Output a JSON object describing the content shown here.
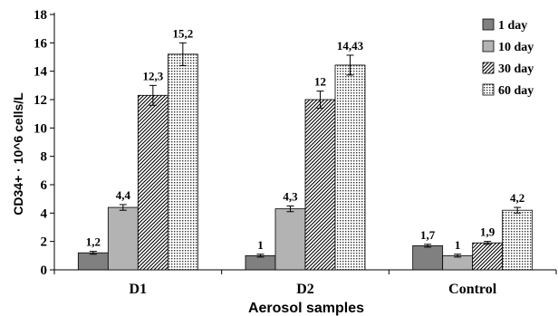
{
  "chart_data": {
    "type": "bar",
    "title": "",
    "xlabel": "Aerosol samples",
    "ylabel": "CD34+ · 10^6 cells/L",
    "categories": [
      "D1",
      "D2",
      "Control"
    ],
    "ylim": [
      0,
      18
    ],
    "yticks": [
      0,
      2,
      4,
      6,
      8,
      10,
      12,
      14,
      16,
      18
    ],
    "grid": false,
    "legend_position": "top-right",
    "series": [
      {
        "name": "1 day",
        "values": [
          1.2,
          1.0,
          1.7
        ],
        "errors": [
          0.1,
          0.1,
          0.1
        ],
        "labels": [
          "1,2",
          "1",
          "1,7"
        ],
        "fill": "#808080",
        "pattern": "solid"
      },
      {
        "name": "10 day",
        "values": [
          4.4,
          4.3,
          1.0
        ],
        "errors": [
          0.2,
          0.2,
          0.1
        ],
        "labels": [
          "4,4",
          "4,3",
          "1"
        ],
        "fill": "#b3b3b3",
        "pattern": "solid"
      },
      {
        "name": "30 day",
        "values": [
          12.3,
          12.0,
          1.9
        ],
        "errors": [
          0.7,
          0.6,
          0.1
        ],
        "labels": [
          "12,3",
          "12",
          "1,9"
        ],
        "fill": "#ffffff",
        "pattern": "diagonal"
      },
      {
        "name": "60 day",
        "values": [
          15.2,
          14.43,
          4.2
        ],
        "errors": [
          0.8,
          0.7,
          0.2
        ],
        "labels": [
          "15,2",
          "14,43",
          "4,2"
        ],
        "fill": "#ffffff",
        "pattern": "dots"
      }
    ]
  }
}
